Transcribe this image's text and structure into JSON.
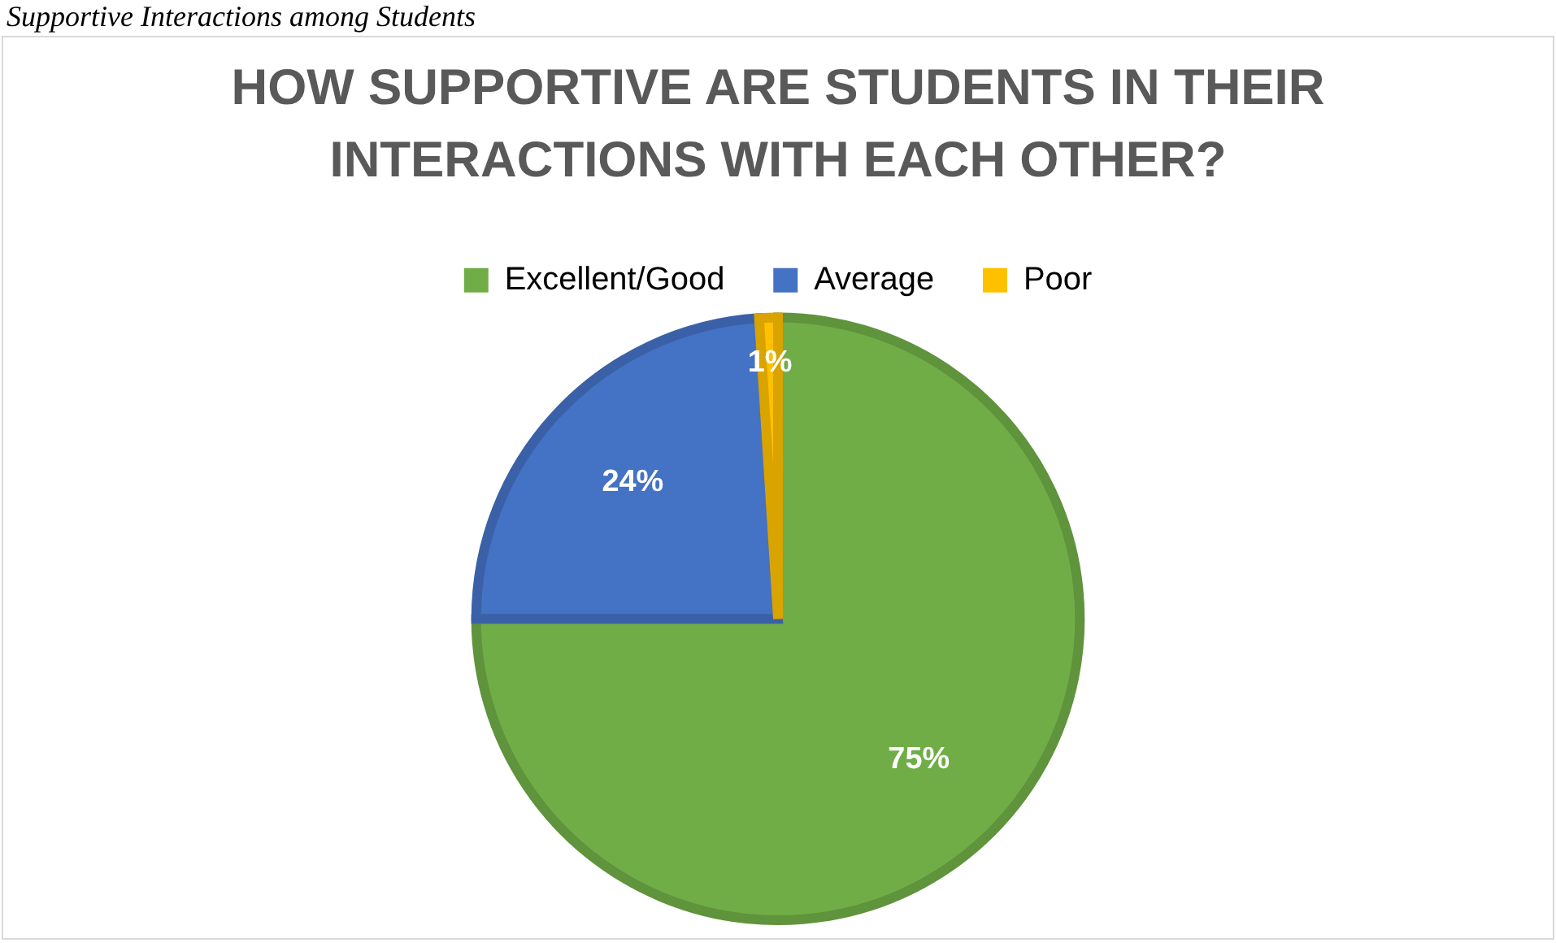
{
  "chart_data": {
    "type": "pie",
    "title": "HOW SUPPORTIVE ARE STUDENTS IN THEIR INTERACTIONS WITH EACH OTHER?",
    "annotations": [
      "Supportive Interactions among Students"
    ],
    "categories": [
      "Excellent/Good",
      "Average",
      "Poor"
    ],
    "values": [
      75,
      24,
      1
    ],
    "colors": [
      "#70ad47",
      "#4472c4",
      "#ffc000"
    ],
    "value_labels": [
      "75%",
      "24%",
      "1%"
    ],
    "legend": "top"
  }
}
